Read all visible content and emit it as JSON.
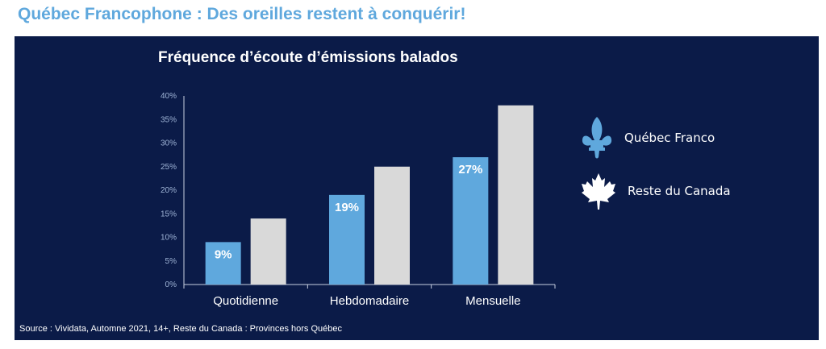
{
  "slide_title": "Québec Francophone : Des oreilles restent à conquérir!",
  "source": "Source : Vividata, Automne 2021, 14+, Reste du Canada : Provinces hors Québec",
  "colors": {
    "background": "#0b1b48",
    "quebec": "#5fa8dd",
    "rest_of_canada": "#d9d9d9",
    "title": "#5fa8dd"
  },
  "legend": [
    {
      "label": "Québec Franco",
      "icon": "fleur-de-lis-icon"
    },
    {
      "label": "Reste du Canada",
      "icon": "maple-leaf-icon"
    }
  ],
  "chart_data": {
    "type": "bar",
    "title": "Fréquence d’écoute d’émissions balados",
    "categories": [
      "Quotidienne",
      "Hebdomadaire",
      "Mensuelle"
    ],
    "series": [
      {
        "name": "Québec Franco",
        "values": [
          9,
          19,
          27
        ],
        "data_labels": [
          "9%",
          "19%",
          "27%"
        ]
      },
      {
        "name": "Reste du Canada",
        "values": [
          14,
          25,
          38
        ]
      }
    ],
    "y_ticks": [
      "0%",
      "5%",
      "10%",
      "15%",
      "20%",
      "25%",
      "30%",
      "35%",
      "40%"
    ],
    "ylim": [
      0,
      40
    ],
    "grid": false,
    "legend_position": "right"
  }
}
